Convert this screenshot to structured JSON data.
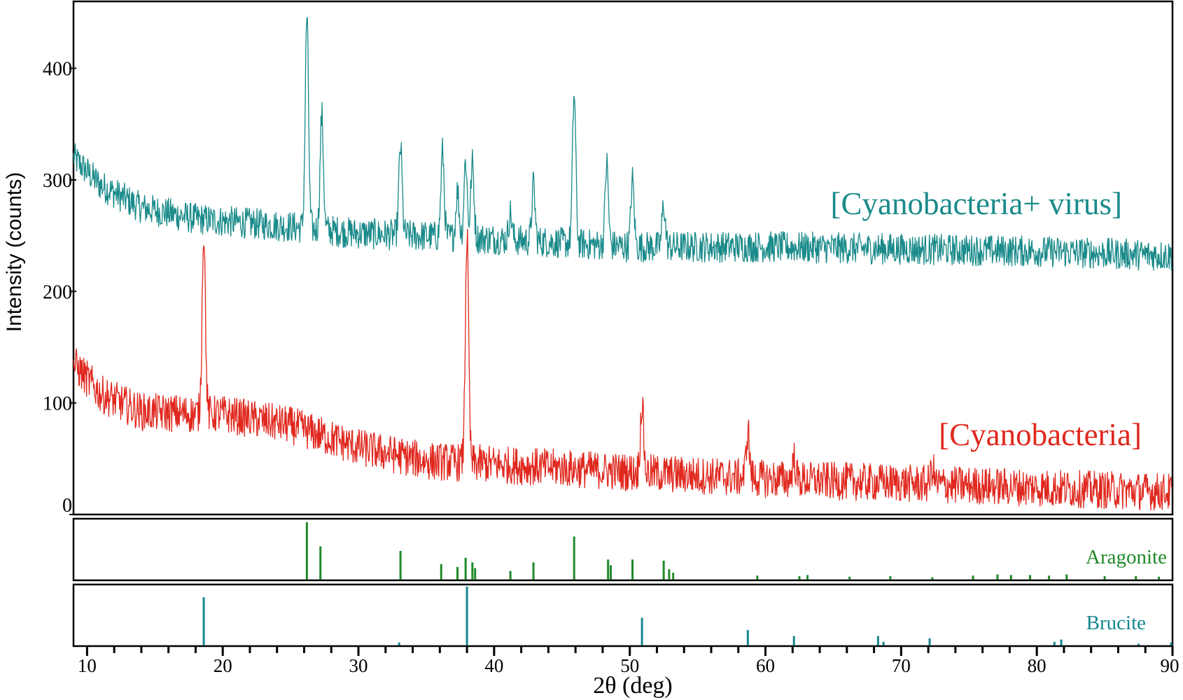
{
  "chart_data": {
    "type": "line",
    "xlabel": "2θ (deg)",
    "ylabel": "Intensity (counts)",
    "xlim": [
      9,
      90
    ],
    "ylim": [
      0,
      460
    ],
    "x_ticks": [
      "10",
      "20",
      "30",
      "40",
      "50",
      "60",
      "70",
      "80",
      "90"
    ],
    "y_ticks": [
      "0",
      "100",
      "200",
      "300",
      "400"
    ],
    "grid": false,
    "series": [
      {
        "name": "[Cyanobacteria+ virus]",
        "color": "#1a8a8a",
        "baseline": [
          [
            9,
            320
          ],
          [
            11,
            295
          ],
          [
            14,
            275
          ],
          [
            18,
            265
          ],
          [
            25,
            258
          ],
          [
            30,
            252
          ],
          [
            40,
            247
          ],
          [
            50,
            240
          ],
          [
            60,
            240
          ],
          [
            70,
            238
          ],
          [
            80,
            236
          ],
          [
            90,
            232
          ]
        ],
        "peaks": [
          [
            26.2,
            447
          ],
          [
            27.3,
            358
          ],
          [
            33.1,
            330
          ],
          [
            36.2,
            325
          ],
          [
            37.3,
            290
          ],
          [
            37.9,
            318
          ],
          [
            38.4,
            315
          ],
          [
            41.2,
            270
          ],
          [
            42.9,
            295
          ],
          [
            45.9,
            378
          ],
          [
            48.3,
            315
          ],
          [
            50.2,
            300
          ],
          [
            52.5,
            278
          ]
        ]
      },
      {
        "name": "[Cyanobacteria]",
        "color": "#e0281e",
        "baseline": [
          [
            9,
            135
          ],
          [
            11,
            108
          ],
          [
            14,
            92
          ],
          [
            18,
            90
          ],
          [
            20,
            90
          ],
          [
            25,
            80
          ],
          [
            30,
            60
          ],
          [
            35,
            48
          ],
          [
            40,
            45
          ],
          [
            50,
            38
          ],
          [
            60,
            32
          ],
          [
            70,
            28
          ],
          [
            80,
            24
          ],
          [
            90,
            20
          ]
        ],
        "peaks": [
          [
            18.6,
            255
          ],
          [
            38.0,
            250
          ],
          [
            50.9,
            100
          ],
          [
            58.7,
            75
          ],
          [
            62.1,
            50
          ],
          [
            72.3,
            42
          ]
        ]
      }
    ],
    "reference_patterns": [
      {
        "name": "Aragonite",
        "color": "#1f8a2a",
        "lines": [
          [
            26.2,
            100
          ],
          [
            27.2,
            58
          ],
          [
            33.1,
            50
          ],
          [
            36.1,
            27
          ],
          [
            37.3,
            22
          ],
          [
            37.9,
            38
          ],
          [
            38.4,
            30
          ],
          [
            38.6,
            20
          ],
          [
            41.2,
            15
          ],
          [
            42.9,
            30
          ],
          [
            45.9,
            75
          ],
          [
            48.4,
            35
          ],
          [
            48.6,
            25
          ],
          [
            50.2,
            35
          ],
          [
            52.5,
            33
          ],
          [
            52.9,
            18
          ],
          [
            53.2,
            12
          ],
          [
            59.4,
            7
          ],
          [
            62.5,
            6
          ],
          [
            63.1,
            8
          ],
          [
            66.2,
            5
          ],
          [
            69.2,
            6
          ],
          [
            72.3,
            4
          ],
          [
            75.3,
            7
          ],
          [
            77.1,
            9
          ],
          [
            78.1,
            8
          ],
          [
            79.5,
            8
          ],
          [
            80.9,
            7
          ],
          [
            82.2,
            9
          ],
          [
            85.0,
            6
          ],
          [
            87.3,
            6
          ],
          [
            89.0,
            5
          ]
        ]
      },
      {
        "name": "Brucite",
        "color": "#17868f",
        "lines": [
          [
            18.6,
            82
          ],
          [
            33.0,
            5
          ],
          [
            38.0,
            100
          ],
          [
            50.9,
            47
          ],
          [
            58.7,
            26
          ],
          [
            62.1,
            16
          ],
          [
            68.3,
            16
          ],
          [
            68.7,
            6
          ],
          [
            72.1,
            12
          ],
          [
            81.3,
            6
          ],
          [
            81.8,
            10
          ],
          [
            87.5,
            3
          ],
          [
            89.9,
            5
          ]
        ]
      }
    ]
  }
}
